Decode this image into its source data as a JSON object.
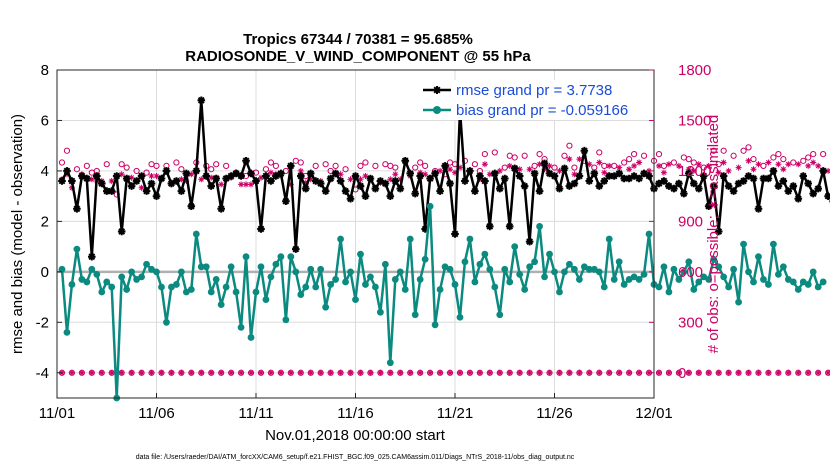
{
  "chart_data": {
    "type": "line",
    "title": "Tropics 67344 / 70381 = 95.685%",
    "subtitle": "RADIOSONDE_V_WIND_COMPONENT @ 55 hPa",
    "ylabel": "rmse and bias (model - observation)",
    "ylabel_right": "# of obs: o=possible; ∗=assimilated",
    "xlabel": "Nov.01,2018 00:00:00 start",
    "footnote": "data file: /Users/raeder/DAI/ATM_forcXX/CAM6_setup/f.e21.FHIST_BGC.f09_025.CAM6assim.011/Diags_NTrS_2018-11/obs_diag_output.nc",
    "x_range_days": [
      0,
      30
    ],
    "ylim": [
      -5,
      8
    ],
    "ylim_right": [
      -150,
      1800
    ],
    "x_ticks": [
      0,
      5,
      10,
      15,
      20,
      25,
      30
    ],
    "x_tick_labels": [
      "11/01",
      "11/06",
      "11/11",
      "11/16",
      "11/21",
      "11/26",
      "12/01"
    ],
    "y_ticks": [
      "-4",
      "-2",
      "0",
      "2",
      "4",
      "6",
      "8"
    ],
    "y_tick_values": [
      -4,
      -2,
      0,
      2,
      4,
      6,
      8
    ],
    "y_right_ticks": [
      "0",
      "300",
      "600",
      "900",
      "1200",
      "1500",
      "1800"
    ],
    "y_right_tick_values": [
      0,
      300,
      600,
      900,
      1200,
      1500,
      1800
    ],
    "x_step_days": 0.25,
    "series": [
      {
        "name": "rmse grand pr = 3.7738",
        "color": "#000000",
        "marker": "star",
        "values": [
          3.6,
          4.0,
          3.6,
          2.5,
          3.8,
          3.7,
          0.6,
          3.8,
          3.5,
          3.2,
          3.2,
          3.8,
          1.6,
          3.7,
          3.4,
          3.6,
          3.8,
          3.2,
          3.5,
          3.0,
          3.7,
          4.0,
          3.5,
          3.6,
          3.2,
          3.9,
          2.6,
          4.0,
          6.8,
          3.8,
          3.4,
          3.7,
          2.5,
          3.7,
          3.8,
          3.9,
          3.8,
          4.4,
          3.9,
          3.6,
          1.7,
          3.8,
          3.6,
          3.8,
          3.9,
          2.8,
          4.2,
          0.9,
          3.8,
          3.3,
          3.9,
          3.6,
          3.5,
          3.2,
          3.7,
          3.9,
          3.6,
          3.2,
          2.9,
          3.8,
          3.4,
          3.0,
          3.7,
          3.3,
          3.6,
          3.5,
          3.0,
          3.6,
          3.3,
          4.4,
          3.9,
          3.1,
          3.8,
          1.7,
          3.7,
          3.9,
          3.2,
          4.2,
          3.5,
          1.5,
          6.4,
          3.6,
          4.0,
          3.2,
          3.8,
          3.6,
          1.8,
          3.9,
          3.3,
          3.7,
          1.8,
          4.1,
          3.8,
          3.4,
          1.2,
          3.9,
          3.2,
          4.3,
          3.9,
          3.8,
          3.3,
          4.1,
          3.4,
          3.5,
          3.8,
          4.8,
          3.6,
          3.9,
          3.4,
          3.6,
          3.8,
          3.8,
          3.9,
          3.7,
          3.7,
          3.8,
          3.7,
          3.9,
          3.8,
          3.3,
          3.5,
          3.6,
          3.4,
          3.3,
          3.5,
          3.1,
          3.9,
          3.5,
          3.3,
          3.8,
          2.6,
          3.4,
          1.6,
          3.8,
          3.4,
          3.2,
          3.5,
          3.6,
          3.8,
          3.7,
          2.5,
          3.7,
          3.7,
          4.0,
          3.4,
          3.6,
          3.2,
          3.4,
          2.9,
          3.8,
          3.5,
          3.1,
          3.3,
          4.0,
          3.0,
          2.8
        ]
      },
      {
        "name": "bias grand pr = -0.059166",
        "color": "#0b8a80",
        "marker": "circle",
        "values": [
          0.1,
          -2.4,
          -0.5,
          0.9,
          -0.3,
          -0.4,
          0.1,
          -0.1,
          -0.8,
          -0.4,
          -0.6,
          -5.0,
          -0.2,
          -0.7,
          0.0,
          -0.3,
          -0.2,
          0.3,
          0.1,
          0.0,
          -0.6,
          -2.0,
          -0.6,
          -0.5,
          0.0,
          -0.8,
          -0.7,
          1.5,
          0.2,
          0.2,
          -0.8,
          -0.3,
          -1.3,
          -0.6,
          0.2,
          -0.8,
          -2.2,
          0.6,
          -2.6,
          -0.8,
          0.2,
          -1.1,
          -0.2,
          0.3,
          0.6,
          -1.9,
          0.6,
          0.0,
          -0.9,
          -0.6,
          0.1,
          -0.6,
          0.1,
          -1.4,
          -0.5,
          -0.3,
          1.3,
          -0.4,
          0.0,
          -1.1,
          0.7,
          -0.5,
          -0.2,
          -0.6,
          -1.6,
          0.3,
          -3.6,
          -0.3,
          0.0,
          -0.7,
          1.3,
          -1.7,
          -0.3,
          0.5,
          2.6,
          -2.1,
          -0.7,
          0.2,
          0.1,
          -0.5,
          -1.8,
          0.4,
          1.3,
          -0.4,
          0.3,
          0.7,
          0.1,
          -0.6,
          -1.7,
          0.1,
          -0.4,
          1.0,
          -0.1,
          -0.7,
          0.2,
          0.4,
          1.8,
          -0.2,
          0.7,
          0.0,
          -0.8,
          0.0,
          0.3,
          0.1,
          -0.3,
          0.2,
          0.1,
          0.1,
          0.0,
          -0.6,
          1.3,
          -0.3,
          0.4,
          -0.5,
          -0.3,
          -0.2,
          -0.3,
          -0.1,
          1.5,
          -0.5,
          -0.6,
          0.2,
          -0.8,
          0.1,
          -0.3,
          0.0,
          0.4,
          -0.7,
          -0.4,
          -0.2,
          -0.3,
          0.5,
          0.2,
          -0.2,
          -0.6,
          0.1,
          -1.2,
          1.1,
          0.0,
          -0.4,
          0.6,
          -0.3,
          -0.5,
          1.1,
          -0.1,
          0.2,
          -0.3,
          -0.4,
          -0.7,
          -0.4,
          -0.5,
          0.0,
          -0.6,
          -0.4
        ]
      }
    ],
    "obs_possible": [
      1250,
      1320,
      1180,
      1210,
      1250,
      1230,
      1190,
      1200,
      1180,
      1240,
      1200,
      1060,
      1240,
      1220,
      1220,
      1200,
      1190,
      1190,
      1240,
      1230,
      1180,
      1230,
      1210,
      1250,
      1210,
      1180,
      1240,
      1250,
      1190,
      1230,
      1210,
      1240,
      1200,
      1230,
      1200,
      1190,
      1170,
      1170,
      1200,
      1190,
      1230,
      1210,
      1250,
      1230,
      1220,
      1200,
      1180,
      1260,
      1250,
      1170,
      1220,
      1230,
      1180,
      1240,
      1200,
      1230,
      1240,
      1210,
      1200,
      1090,
      1230,
      1250,
      1200,
      1230,
      1180,
      1240,
      1230,
      1220,
      1200,
      1260,
      1220,
      1220,
      1250,
      1230,
      1210,
      1200,
      1260,
      1180,
      1250,
      1240,
      1270,
      1260,
      1250,
      1240,
      1200,
      1300,
      1230,
      1310,
      1250,
      1220,
      1290,
      1280,
      1270,
      1290,
      1260,
      1230,
      1300,
      1270,
      1290,
      1220,
      1260,
      1290,
      1350,
      1220,
      1380,
      1260,
      1300,
      1220,
      1310,
      1230,
      1290,
      1230,
      1280,
      1250,
      1270,
      1300,
      1330,
      1290,
      1260,
      1260,
      1300,
      1230,
      1300,
      1250,
      1290,
      1280,
      1270,
      1250,
      1310,
      1220,
      1290,
      1320,
      1240,
      1320,
      1250,
      1290,
      1280,
      1320,
      1340,
      1270,
      1300,
      1230,
      1320,
      1280,
      1300,
      1270,
      1300,
      1250,
      1310,
      1260,
      1280,
      1300,
      1290,
      1300,
      1270,
      1320
    ],
    "obs_assimilated": [
      1150,
      1180,
      1100,
      1150,
      1180,
      1160,
      1150,
      1140,
      1140,
      1160,
      1140,
      1020,
      1180,
      1150,
      1160,
      1140,
      1100,
      1130,
      1170,
      1170,
      1150,
      1160,
      1120,
      1080,
      1150,
      1140,
      1180,
      1190,
      1150,
      1150,
      1160,
      1160,
      1120,
      1150,
      1160,
      1140,
      1120,
      1120,
      1120,
      1140,
      1160,
      1170,
      1190,
      1180,
      1170,
      1150,
      1120,
      1180,
      1200,
      1130,
      1150,
      1160,
      1140,
      1180,
      1150,
      1180,
      1180,
      1160,
      1150,
      1060,
      1150,
      1170,
      1150,
      1180,
      1130,
      1170,
      1150,
      1180,
      1150,
      1200,
      1170,
      1180,
      1190,
      1180,
      1160,
      1150,
      1200,
      1140,
      1210,
      1190,
      1220,
      1200,
      1200,
      1190,
      1150,
      1240,
      1180,
      1240,
      1200,
      1180,
      1230,
      1220,
      1210,
      1230,
      1210,
      1190,
      1240,
      1210,
      1230,
      1180,
      1200,
      1230,
      1270,
      1180,
      1270,
      1210,
      1240,
      1180,
      1250,
      1190,
      1230,
      1180,
      1220,
      1190,
      1210,
      1230,
      1250,
      1220,
      1200,
      1210,
      1230,
      1190,
      1240,
      1200,
      1230,
      1220,
      1210,
      1200,
      1240,
      1170,
      1230,
      1250,
      1190,
      1250,
      1200,
      1230,
      1220,
      1240,
      1260,
      1210,
      1240,
      1180,
      1250,
      1220,
      1240,
      1210,
      1240,
      1200,
      1240,
      1210,
      1230,
      1250,
      1230,
      1240,
      1200,
      1260
    ],
    "obs_bottom_value": 0
  },
  "colors": {
    "axis_right": "#cc0066",
    "rmse": "#000000",
    "bias": "#0b8a80",
    "legend_text": "#1a4cd9",
    "zero_line": "#b0b0b0",
    "grid": "#dcdcdc"
  }
}
